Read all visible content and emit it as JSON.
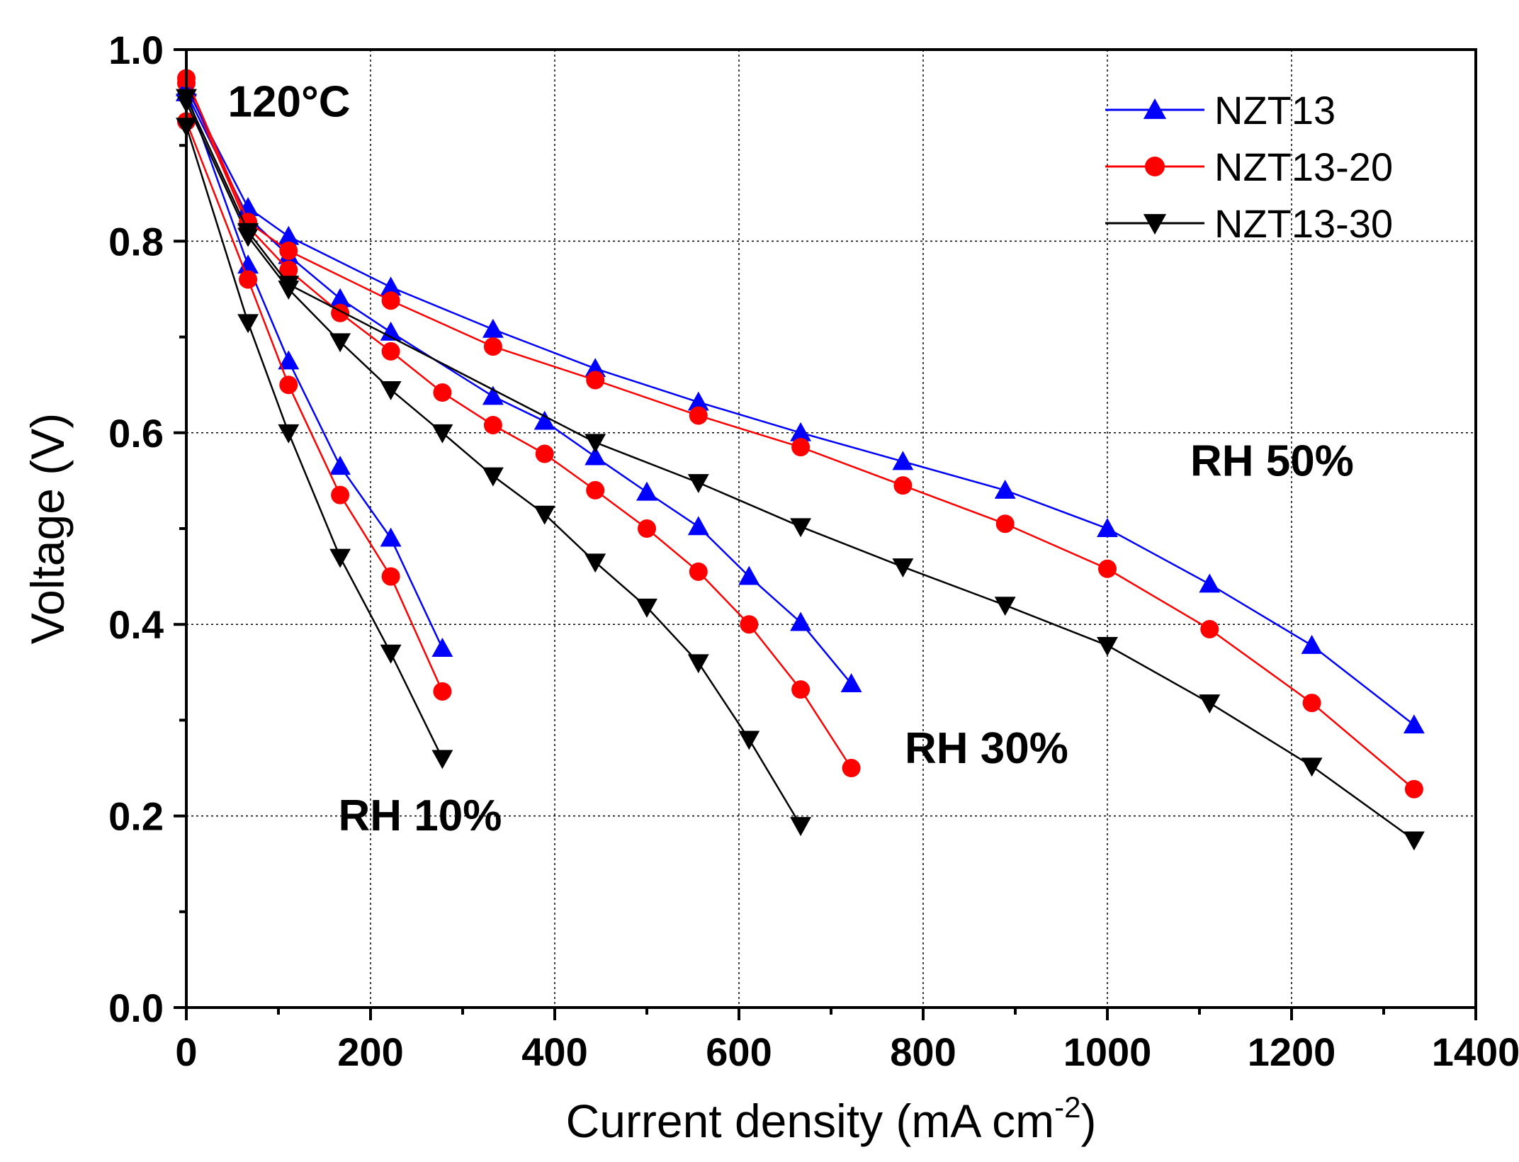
{
  "chart_data": {
    "type": "line",
    "title": "",
    "xlabel": "Current density (mA cm",
    "xlabel_sup": "-2",
    "xlabel_close": ")",
    "ylabel": "Voltage (V)",
    "xlim": [
      0,
      1400
    ],
    "ylim": [
      0,
      1.0
    ],
    "xticks": [
      0,
      200,
      400,
      600,
      800,
      1000,
      1200,
      1400
    ],
    "xtick_labels": [
      "0",
      "200",
      "400",
      "600",
      "800",
      "1000",
      "1200",
      "1400"
    ],
    "yticks": [
      0.0,
      0.2,
      0.4,
      0.6,
      0.8,
      1.0
    ],
    "ytick_labels": [
      "0.0",
      "0.2",
      "0.4",
      "0.6",
      "0.8",
      "1.0"
    ],
    "grid": true,
    "legend_position": "top-right",
    "annotations": [
      {
        "text": "120°C",
        "x": 45,
        "y": 0.93
      },
      {
        "text": "RH 50%",
        "x": 1090,
        "y": 0.555
      },
      {
        "text": "RH 30%",
        "x": 780,
        "y": 0.255
      },
      {
        "text": "RH 10%",
        "x": 165,
        "y": 0.185
      }
    ],
    "series": [
      {
        "name": "NZT13",
        "color": "#0000ff",
        "marker": "triangle-up",
        "group": "RH 10%",
        "x": [
          0,
          67,
          111,
          167,
          222,
          278
        ],
        "y": [
          0.955,
          0.775,
          0.675,
          0.565,
          0.49,
          0.375
        ]
      },
      {
        "name": "NZT13-20",
        "color": "#ff0000",
        "marker": "circle",
        "group": "RH 10%",
        "x": [
          0,
          67,
          111,
          167,
          222,
          278
        ],
        "y": [
          0.925,
          0.76,
          0.65,
          0.535,
          0.45,
          0.33
        ]
      },
      {
        "name": "NZT13-30",
        "color": "#000000",
        "marker": "triangle-down",
        "group": "RH 10%",
        "x": [
          0,
          67,
          111,
          167,
          222,
          278
        ],
        "y": [
          0.92,
          0.715,
          0.6,
          0.47,
          0.37,
          0.26
        ]
      },
      {
        "name": "NZT13",
        "color": "#0000ff",
        "marker": "triangle-up",
        "group": "RH 30%",
        "x": [
          0,
          67,
          111,
          167,
          222,
          333,
          389,
          444,
          500,
          556,
          611,
          667,
          722
        ],
        "y": [
          0.955,
          0.825,
          0.785,
          0.74,
          0.705,
          0.638,
          0.612,
          0.575,
          0.538,
          0.502,
          0.45,
          0.402,
          0.338
        ]
      },
      {
        "name": "NZT13-20",
        "color": "#ff0000",
        "marker": "circle",
        "group": "RH 30%",
        "x": [
          0,
          67,
          111,
          167,
          222,
          278,
          333,
          389,
          444,
          500,
          556,
          611,
          667,
          722
        ],
        "y": [
          0.965,
          0.815,
          0.77,
          0.725,
          0.685,
          0.642,
          0.608,
          0.578,
          0.54,
          0.5,
          0.455,
          0.4,
          0.332,
          0.25
        ]
      },
      {
        "name": "NZT13-30",
        "color": "#000000",
        "marker": "triangle-down",
        "group": "RH 30%",
        "x": [
          0,
          67,
          111,
          167,
          222,
          278,
          333,
          389,
          444,
          500,
          556,
          611,
          667
        ],
        "y": [
          0.945,
          0.805,
          0.75,
          0.695,
          0.645,
          0.6,
          0.555,
          0.515,
          0.465,
          0.418,
          0.36,
          0.28,
          0.19
        ]
      },
      {
        "name": "NZT13",
        "color": "#0000ff",
        "marker": "triangle-up",
        "group": "RH 50%",
        "x": [
          0,
          67,
          111,
          222,
          333,
          444,
          556,
          667,
          778,
          889,
          1000,
          1111,
          1222,
          1333
        ],
        "y": [
          0.96,
          0.835,
          0.805,
          0.752,
          0.708,
          0.667,
          0.632,
          0.6,
          0.57,
          0.54,
          0.5,
          0.442,
          0.378,
          0.295
        ]
      },
      {
        "name": "NZT13-20",
        "color": "#ff0000",
        "marker": "circle",
        "group": "RH 50%",
        "x": [
          0,
          67,
          111,
          222,
          333,
          444,
          556,
          667,
          778,
          889,
          1000,
          1111,
          1222,
          1333
        ],
        "y": [
          0.97,
          0.82,
          0.79,
          0.738,
          0.69,
          0.655,
          0.618,
          0.585,
          0.545,
          0.505,
          0.458,
          0.395,
          0.318,
          0.228
        ]
      },
      {
        "name": "NZT13-30",
        "color": "#000000",
        "marker": "triangle-down",
        "group": "RH 50%",
        "x": [
          0,
          67,
          111,
          444,
          556,
          667,
          778,
          889,
          1000,
          1111,
          1222,
          1333
        ],
        "y": [
          0.95,
          0.81,
          0.755,
          0.59,
          0.548,
          0.502,
          0.46,
          0.42,
          0.378,
          0.318,
          0.252,
          0.175
        ]
      }
    ],
    "legend": [
      {
        "label": "NZT13",
        "color": "#0000ff",
        "marker": "triangle-up"
      },
      {
        "label": "NZT13-20",
        "color": "#ff0000",
        "marker": "circle"
      },
      {
        "label": "NZT13-30",
        "color": "#000000",
        "marker": "triangle-down"
      }
    ]
  }
}
